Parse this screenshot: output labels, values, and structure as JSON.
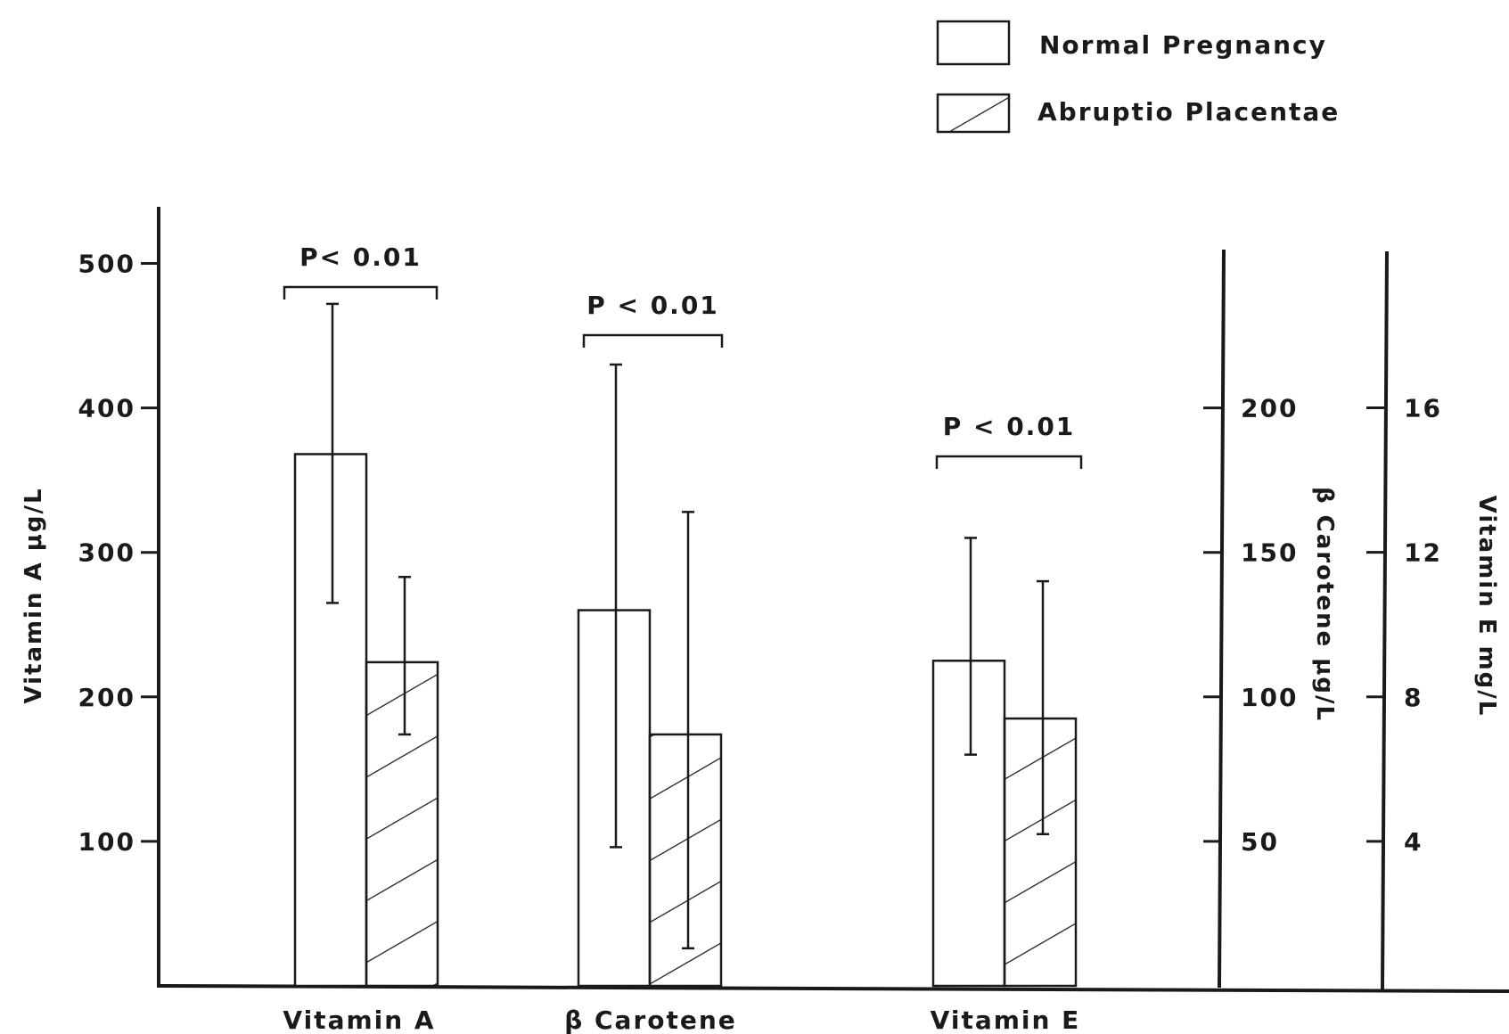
{
  "chart_data": {
    "type": "bar",
    "categories": [
      "Vitamin A",
      "β Carotene",
      "Vitamin E"
    ],
    "series": [
      {
        "name": "Normal Pregnancy",
        "pattern": "open",
        "values": [
          368,
          130,
          9.0
        ],
        "error_low": [
          265,
          48,
          6.4
        ],
        "error_high": [
          472,
          215,
          12.4
        ]
      },
      {
        "name": "Abruptio Placentae",
        "pattern": "hatched",
        "values": [
          224,
          87,
          7.4
        ],
        "error_low": [
          174,
          13,
          4.2
        ],
        "error_high": [
          283,
          164,
          11.2
        ]
      }
    ],
    "axes": [
      {
        "id": "vitA",
        "label": "Vitamin A μg/L",
        "ticks": [
          100,
          200,
          300,
          400,
          500
        ],
        "range": [
          6,
          500
        ],
        "position": "left"
      },
      {
        "id": "carotene",
        "label": "β Carotene μg/L",
        "ticks": [
          50,
          100,
          150,
          200
        ],
        "range": [
          0,
          200
        ],
        "position": "right"
      },
      {
        "id": "vitE",
        "label": "Vitamin E mg/L",
        "ticks": [
          4,
          8,
          12,
          16
        ],
        "range": [
          0,
          16
        ],
        "position": "far-right"
      }
    ],
    "significance": [
      {
        "category": "Vitamin A",
        "label": "P< 0.01"
      },
      {
        "category": "β Carotene",
        "label": "P < 0.01"
      },
      {
        "category": "Vitamin E",
        "label": "P < 0.01"
      }
    ],
    "legend": {
      "position": "top-right",
      "entries": [
        "Normal Pregnancy",
        "Abruptio Placentae"
      ]
    },
    "grid": false
  }
}
